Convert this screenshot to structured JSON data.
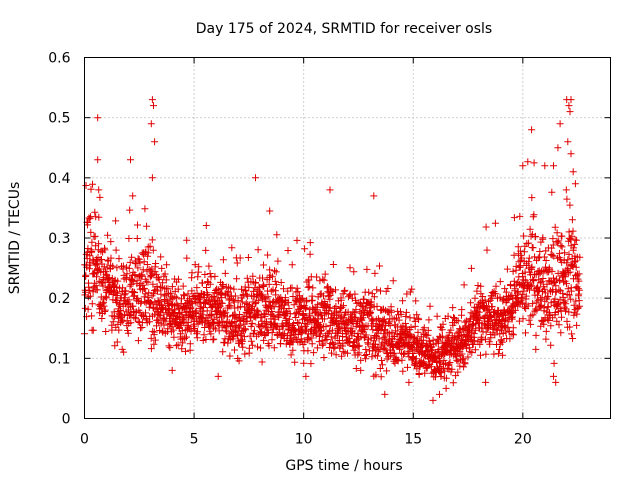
{
  "chart_data": {
    "type": "scatter",
    "title": "Day 175 of 2024, SRMTID for receiver osls",
    "xlabel": "GPS time / hours",
    "ylabel": "SRMTID / TECUs",
    "xlim": [
      0,
      24
    ],
    "ylim": [
      0,
      0.6
    ],
    "xticks": [
      0,
      5,
      10,
      15,
      20
    ],
    "xtick_labels": [
      "0",
      "5",
      "10",
      "15",
      "20"
    ],
    "yticks": [
      0,
      0.1,
      0.2,
      0.3,
      0.4,
      0.5,
      0.6
    ],
    "ytick_labels": [
      "0",
      "0.1",
      "0.2",
      "0.3",
      "0.4",
      "0.5",
      "0.6"
    ],
    "grid": true,
    "marker": "+",
    "marker_color": "#e00000",
    "series": [
      {
        "name": "SRMTID",
        "profile_hours": [
          0.0,
          0.5,
          1.0,
          1.5,
          2.0,
          2.5,
          3.0,
          3.5,
          4.0,
          4.5,
          5.0,
          5.5,
          6.0,
          6.5,
          7.0,
          7.5,
          8.0,
          8.5,
          9.0,
          9.5,
          10.0,
          10.5,
          11.0,
          11.5,
          12.0,
          12.5,
          13.0,
          13.5,
          14.0,
          14.5,
          15.0,
          15.5,
          16.0,
          16.5,
          17.0,
          17.5,
          18.0,
          18.5,
          19.0,
          19.5,
          20.0,
          20.5,
          21.0,
          21.5,
          22.0,
          22.5
        ],
        "profile_median": [
          0.24,
          0.25,
          0.21,
          0.19,
          0.2,
          0.21,
          0.22,
          0.19,
          0.17,
          0.17,
          0.18,
          0.19,
          0.18,
          0.17,
          0.16,
          0.17,
          0.18,
          0.18,
          0.17,
          0.16,
          0.16,
          0.16,
          0.17,
          0.16,
          0.15,
          0.15,
          0.16,
          0.14,
          0.14,
          0.13,
          0.12,
          0.11,
          0.1,
          0.11,
          0.12,
          0.14,
          0.17,
          0.17,
          0.16,
          0.19,
          0.24,
          0.23,
          0.21,
          0.23,
          0.26,
          0.21
        ],
        "profile_spread": [
          0.07,
          0.08,
          0.06,
          0.05,
          0.07,
          0.06,
          0.08,
          0.06,
          0.05,
          0.05,
          0.05,
          0.06,
          0.05,
          0.05,
          0.05,
          0.05,
          0.06,
          0.06,
          0.05,
          0.05,
          0.05,
          0.05,
          0.06,
          0.05,
          0.05,
          0.05,
          0.06,
          0.05,
          0.05,
          0.04,
          0.04,
          0.04,
          0.035,
          0.035,
          0.04,
          0.05,
          0.05,
          0.05,
          0.05,
          0.06,
          0.07,
          0.08,
          0.07,
          0.09,
          0.11,
          0.07
        ],
        "peaks": [
          {
            "x": 0.6,
            "y": 0.5
          },
          {
            "x": 0.6,
            "y": 0.43
          },
          {
            "x": 0.65,
            "y": 0.38
          },
          {
            "x": 2.1,
            "y": 0.43
          },
          {
            "x": 2.2,
            "y": 0.37
          },
          {
            "x": 3.1,
            "y": 0.53
          },
          {
            "x": 3.15,
            "y": 0.52
          },
          {
            "x": 3.05,
            "y": 0.49
          },
          {
            "x": 3.2,
            "y": 0.46
          },
          {
            "x": 3.1,
            "y": 0.4
          },
          {
            "x": 7.8,
            "y": 0.4
          },
          {
            "x": 11.2,
            "y": 0.38
          },
          {
            "x": 13.2,
            "y": 0.37
          },
          {
            "x": 20.4,
            "y": 0.48
          },
          {
            "x": 20.0,
            "y": 0.42
          },
          {
            "x": 21.0,
            "y": 0.42
          },
          {
            "x": 21.4,
            "y": 0.42
          },
          {
            "x": 21.7,
            "y": 0.49
          },
          {
            "x": 21.6,
            "y": 0.45
          },
          {
            "x": 22.0,
            "y": 0.53
          },
          {
            "x": 22.1,
            "y": 0.52
          },
          {
            "x": 22.2,
            "y": 0.53
          },
          {
            "x": 22.15,
            "y": 0.51
          },
          {
            "x": 22.05,
            "y": 0.46
          },
          {
            "x": 22.2,
            "y": 0.44
          },
          {
            "x": 22.3,
            "y": 0.41
          },
          {
            "x": 22.4,
            "y": 0.39
          }
        ],
        "lows": [
          {
            "x": 4.0,
            "y": 0.08
          },
          {
            "x": 6.1,
            "y": 0.07
          },
          {
            "x": 10.1,
            "y": 0.07
          },
          {
            "x": 12.6,
            "y": 0.08
          },
          {
            "x": 13.7,
            "y": 0.04
          },
          {
            "x": 14.8,
            "y": 0.06
          },
          {
            "x": 15.9,
            "y": 0.03
          },
          {
            "x": 16.2,
            "y": 0.04
          },
          {
            "x": 16.5,
            "y": 0.05
          },
          {
            "x": 18.3,
            "y": 0.06
          },
          {
            "x": 21.4,
            "y": 0.07
          },
          {
            "x": 21.5,
            "y": 0.06
          }
        ]
      }
    ]
  }
}
